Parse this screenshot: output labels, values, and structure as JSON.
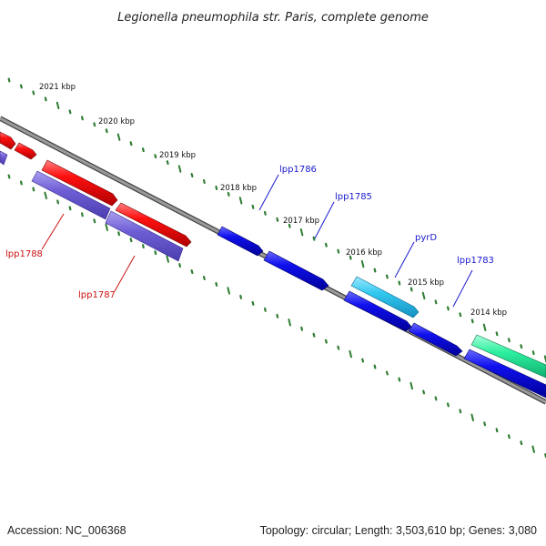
{
  "title": "Legionella pneumophila str. Paris, complete genome",
  "accession_text": "Accession: NC_006368",
  "summary_text": "Topology: circular; Length: 3,503,610 bp; Genes: 3,080",
  "ticks": [
    "2021 kbp",
    "2020 kbp",
    "2019 kbp",
    "2018 kbp",
    "2017 kbp",
    "2016 kbp",
    "2015 kbp",
    "2014 kbp"
  ],
  "gene_labels": {
    "lpp1786": "lpp1786",
    "lpp1785": "lpp1785",
    "pyrD": "pyrD",
    "lpp1783": "lpp1783",
    "lpp1788": "lpp1788",
    "lpp1787": "lpp1787"
  },
  "colors": {
    "backbone": "#777777",
    "tick": "#2e7d32",
    "red": "#ff1111",
    "purple": "#6f5fd6",
    "blue": "#0f0fe8",
    "cyan": "#33c8f0",
    "green": "#2ef0a0",
    "label_blue": "#1a1acc",
    "label_red": "#cc1111"
  }
}
